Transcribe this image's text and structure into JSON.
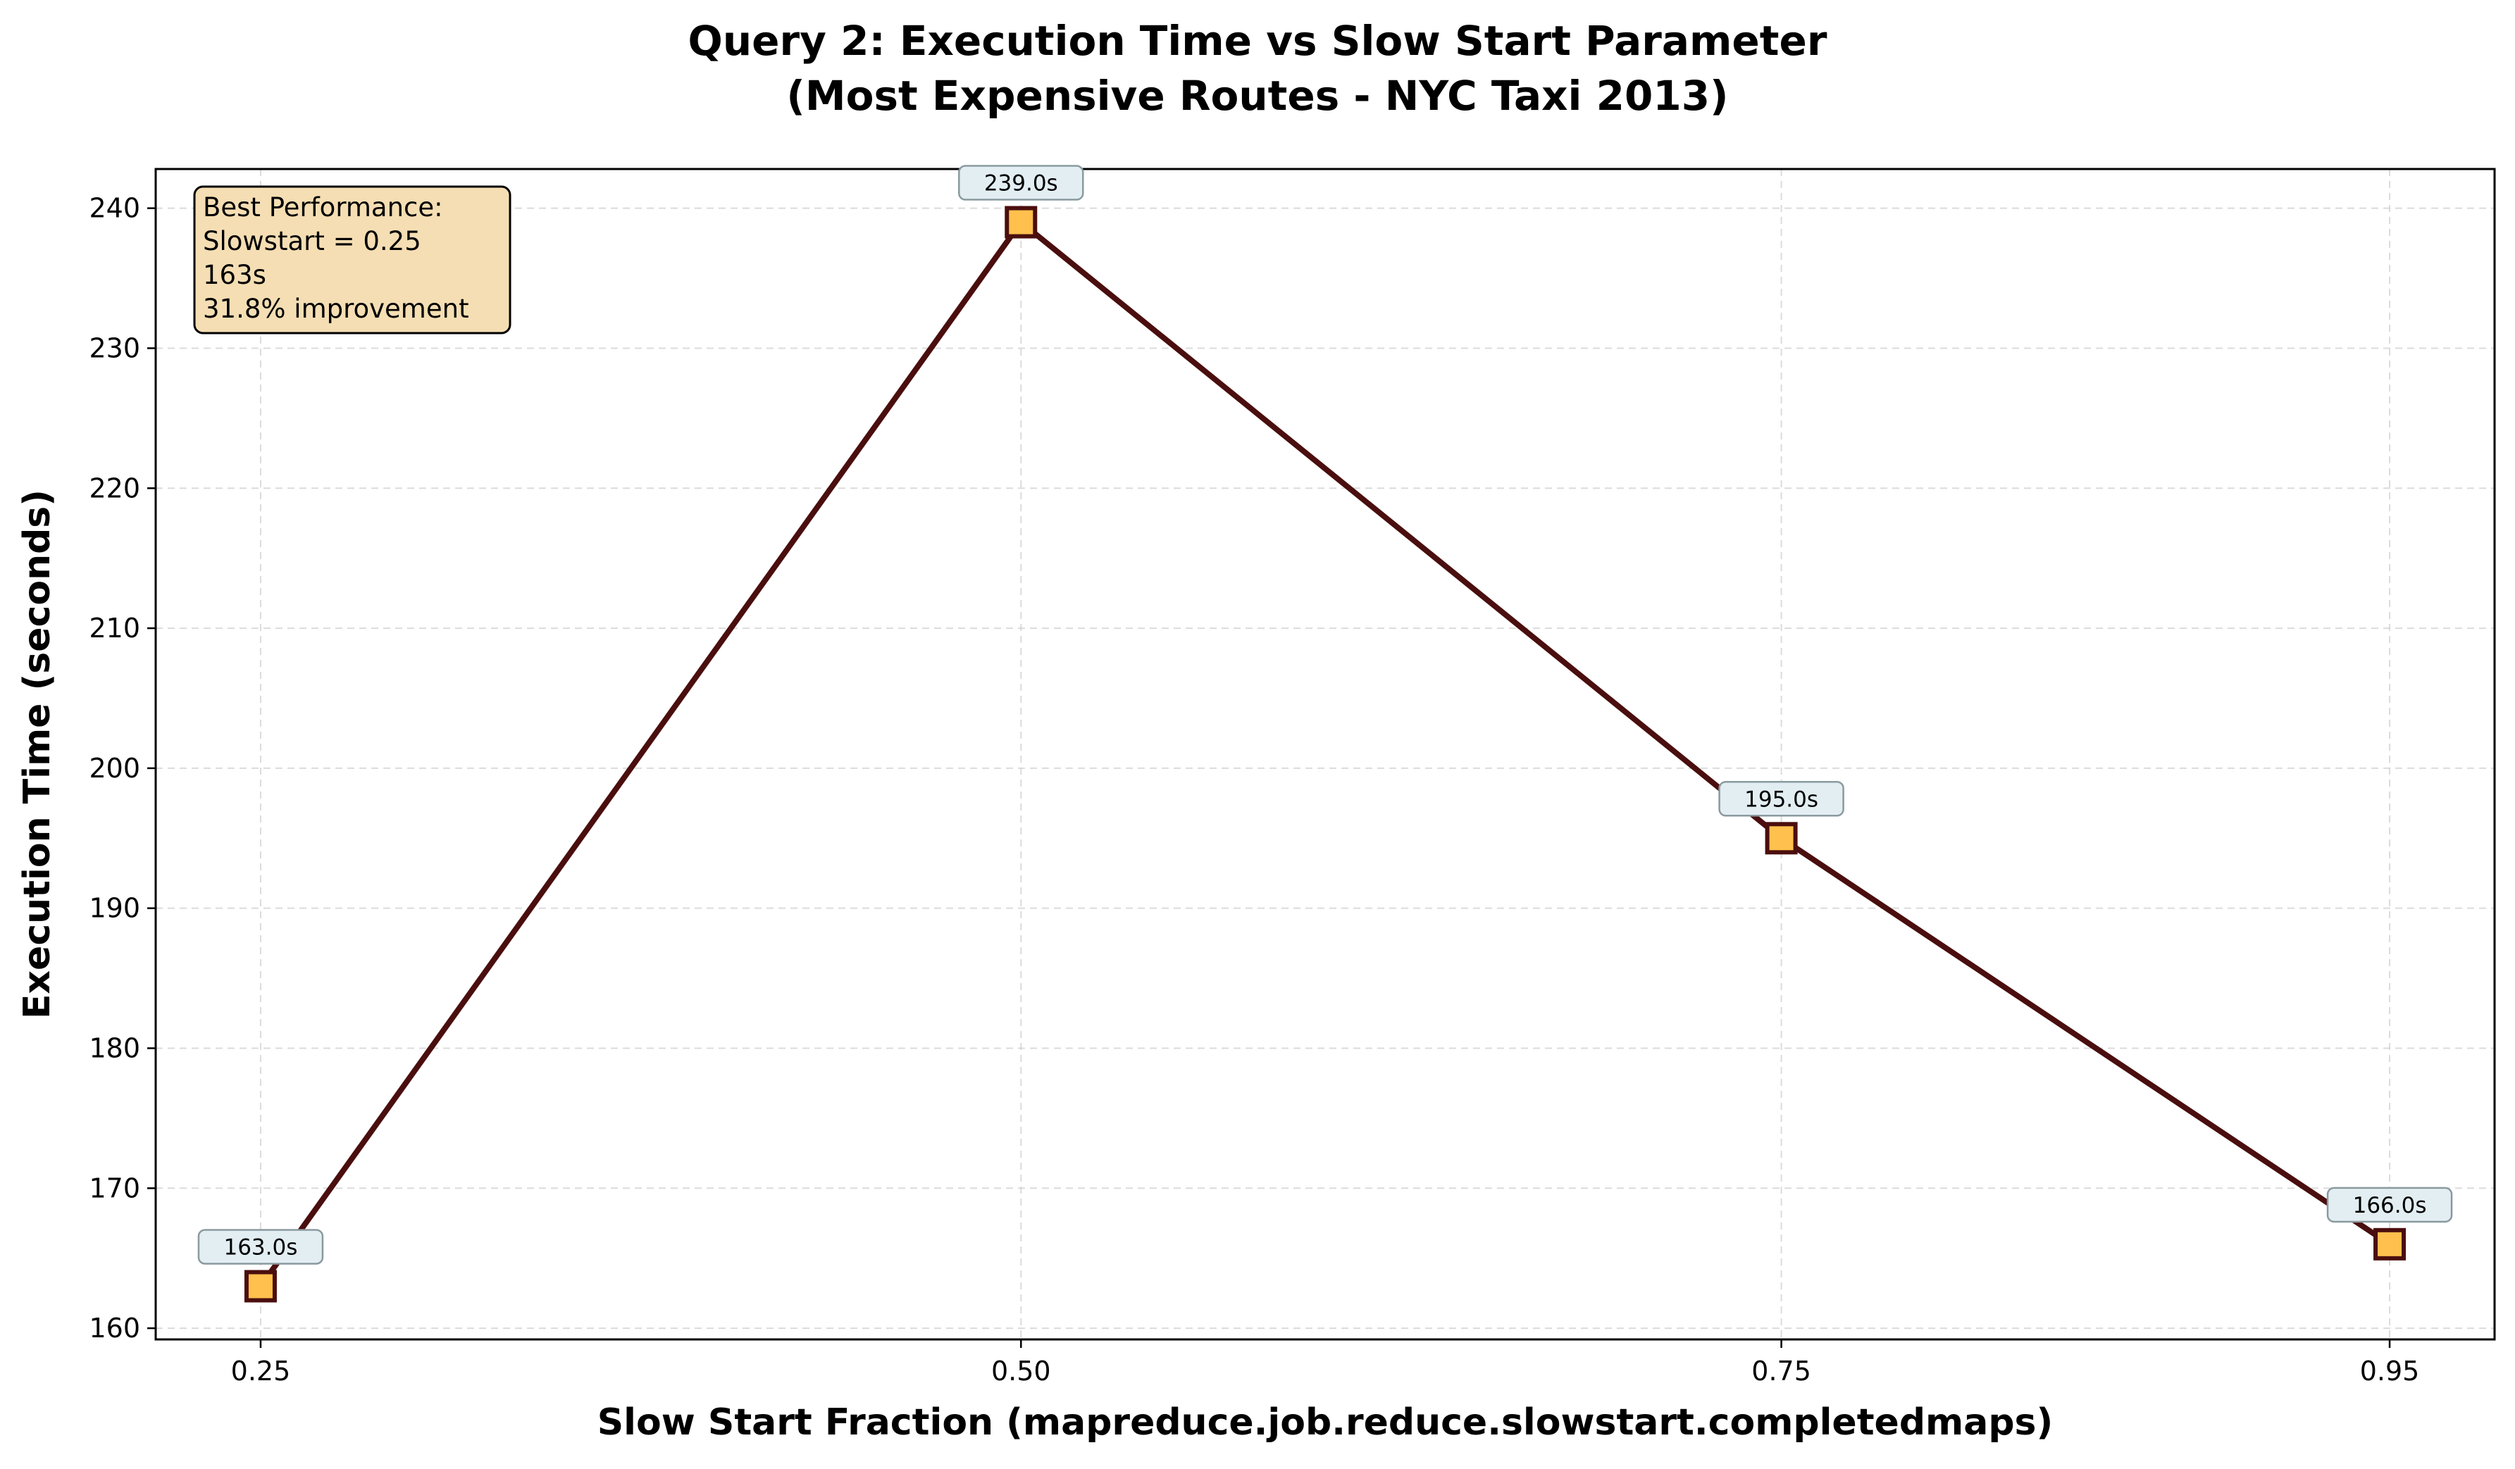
{
  "chart_data": {
    "type": "line",
    "title": [
      "Query 2: Execution Time vs Slow Start Parameter",
      "(Most Expensive Routes - NYC Taxi 2013)"
    ],
    "xlabel": "Slow Start Fraction (mapreduce.job.reduce.slowstart.completedmaps)",
    "ylabel": "Execution Time (seconds)",
    "x": [
      0.25,
      0.5,
      0.75,
      0.95
    ],
    "x_tick_labels": [
      "0.25",
      "0.50",
      "0.75",
      "0.95"
    ],
    "y_ticks": [
      160,
      170,
      180,
      190,
      200,
      210,
      220,
      230,
      240
    ],
    "xlim": [
      0.2155,
      0.9845
    ],
    "ylim": [
      159.2,
      242.8
    ],
    "grid": true,
    "series": [
      {
        "values": [
          163.0,
          239.0,
          195.0,
          166.0
        ],
        "data_labels": [
          "163.0s",
          "239.0s",
          "195.0s",
          "166.0s"
        ],
        "line_color": "#4a0e0e",
        "marker": "square",
        "marker_fill": "#ffc04d",
        "marker_edge": "#4a0e0e"
      }
    ],
    "annotation": {
      "position": "top-left",
      "lines": [
        "Best Performance:",
        "Slowstart = 0.25",
        "163s",
        "31.8% improvement"
      ],
      "background": "#f5deb3"
    }
  }
}
